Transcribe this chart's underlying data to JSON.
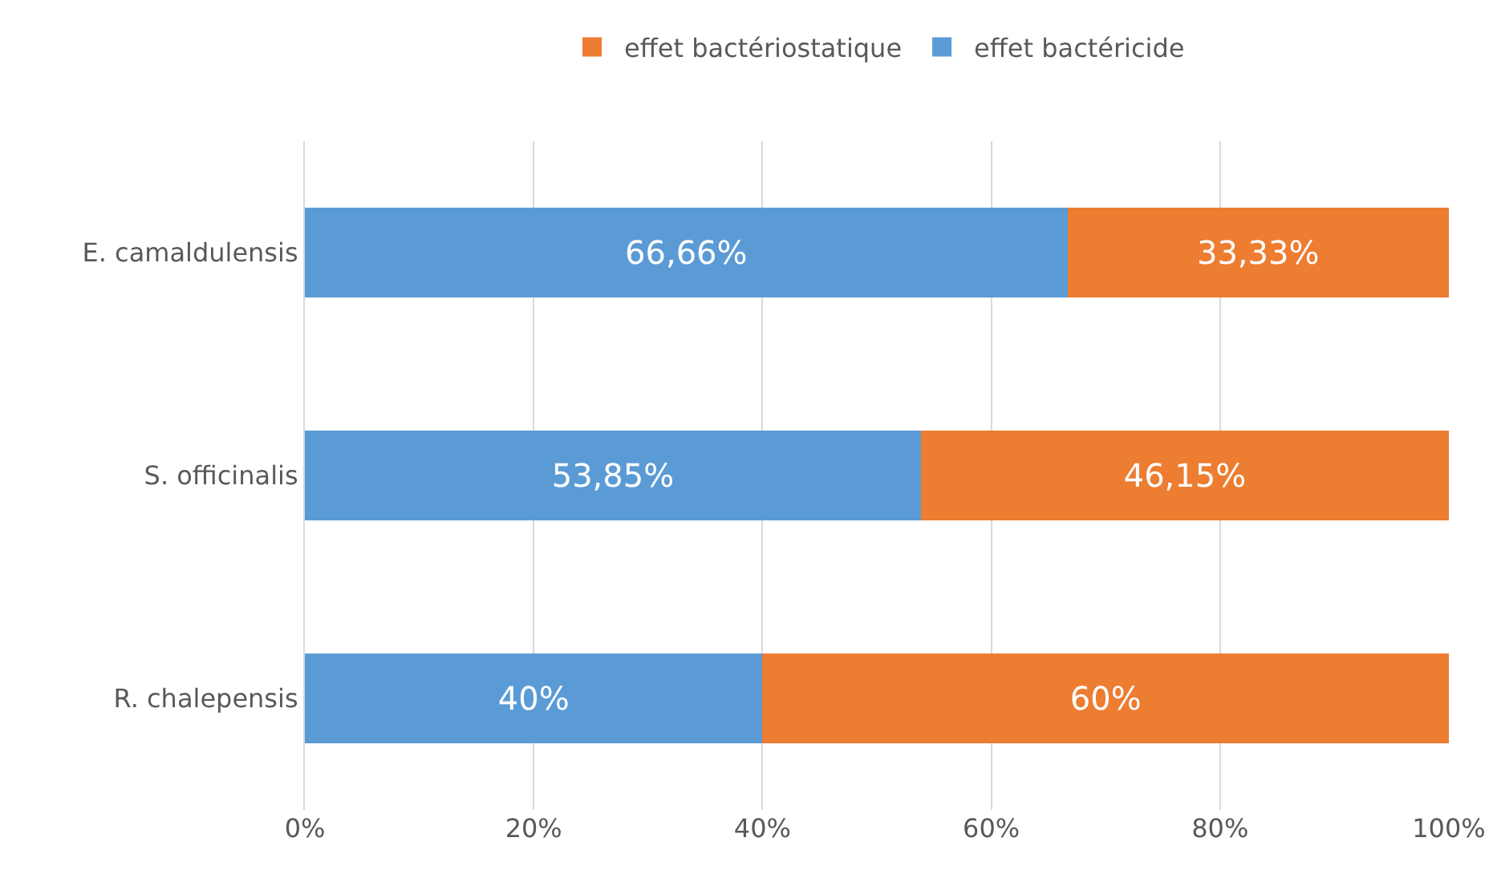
{
  "chart_data": {
    "type": "bar",
    "orientation": "horizontal",
    "stacked": true,
    "categories": [
      "E. camaldulensis",
      "S. officinalis",
      "R. chalepensis"
    ],
    "series": [
      {
        "name": "effet bactéricide",
        "color": "#5b9bd5",
        "values": [
          66.66,
          53.85,
          40
        ],
        "value_labels": [
          "66,66%",
          "53,85%",
          "40%"
        ]
      },
      {
        "name": "effet bactériostatique",
        "color": "#ed7d31",
        "values": [
          33.33,
          46.15,
          60
        ],
        "value_labels": [
          "33,33%",
          "46,15%",
          "60%"
        ]
      }
    ],
    "xlim": [
      0,
      100
    ],
    "xticks": [
      {
        "value": 0,
        "label": "0%"
      },
      {
        "value": 20,
        "label": "20%"
      },
      {
        "value": 40,
        "label": "40%"
      },
      {
        "value": 60,
        "label": "60%"
      },
      {
        "value": 80,
        "label": "80%"
      },
      {
        "value": 100,
        "label": "100%"
      }
    ],
    "grid": "x",
    "legend": "top"
  }
}
